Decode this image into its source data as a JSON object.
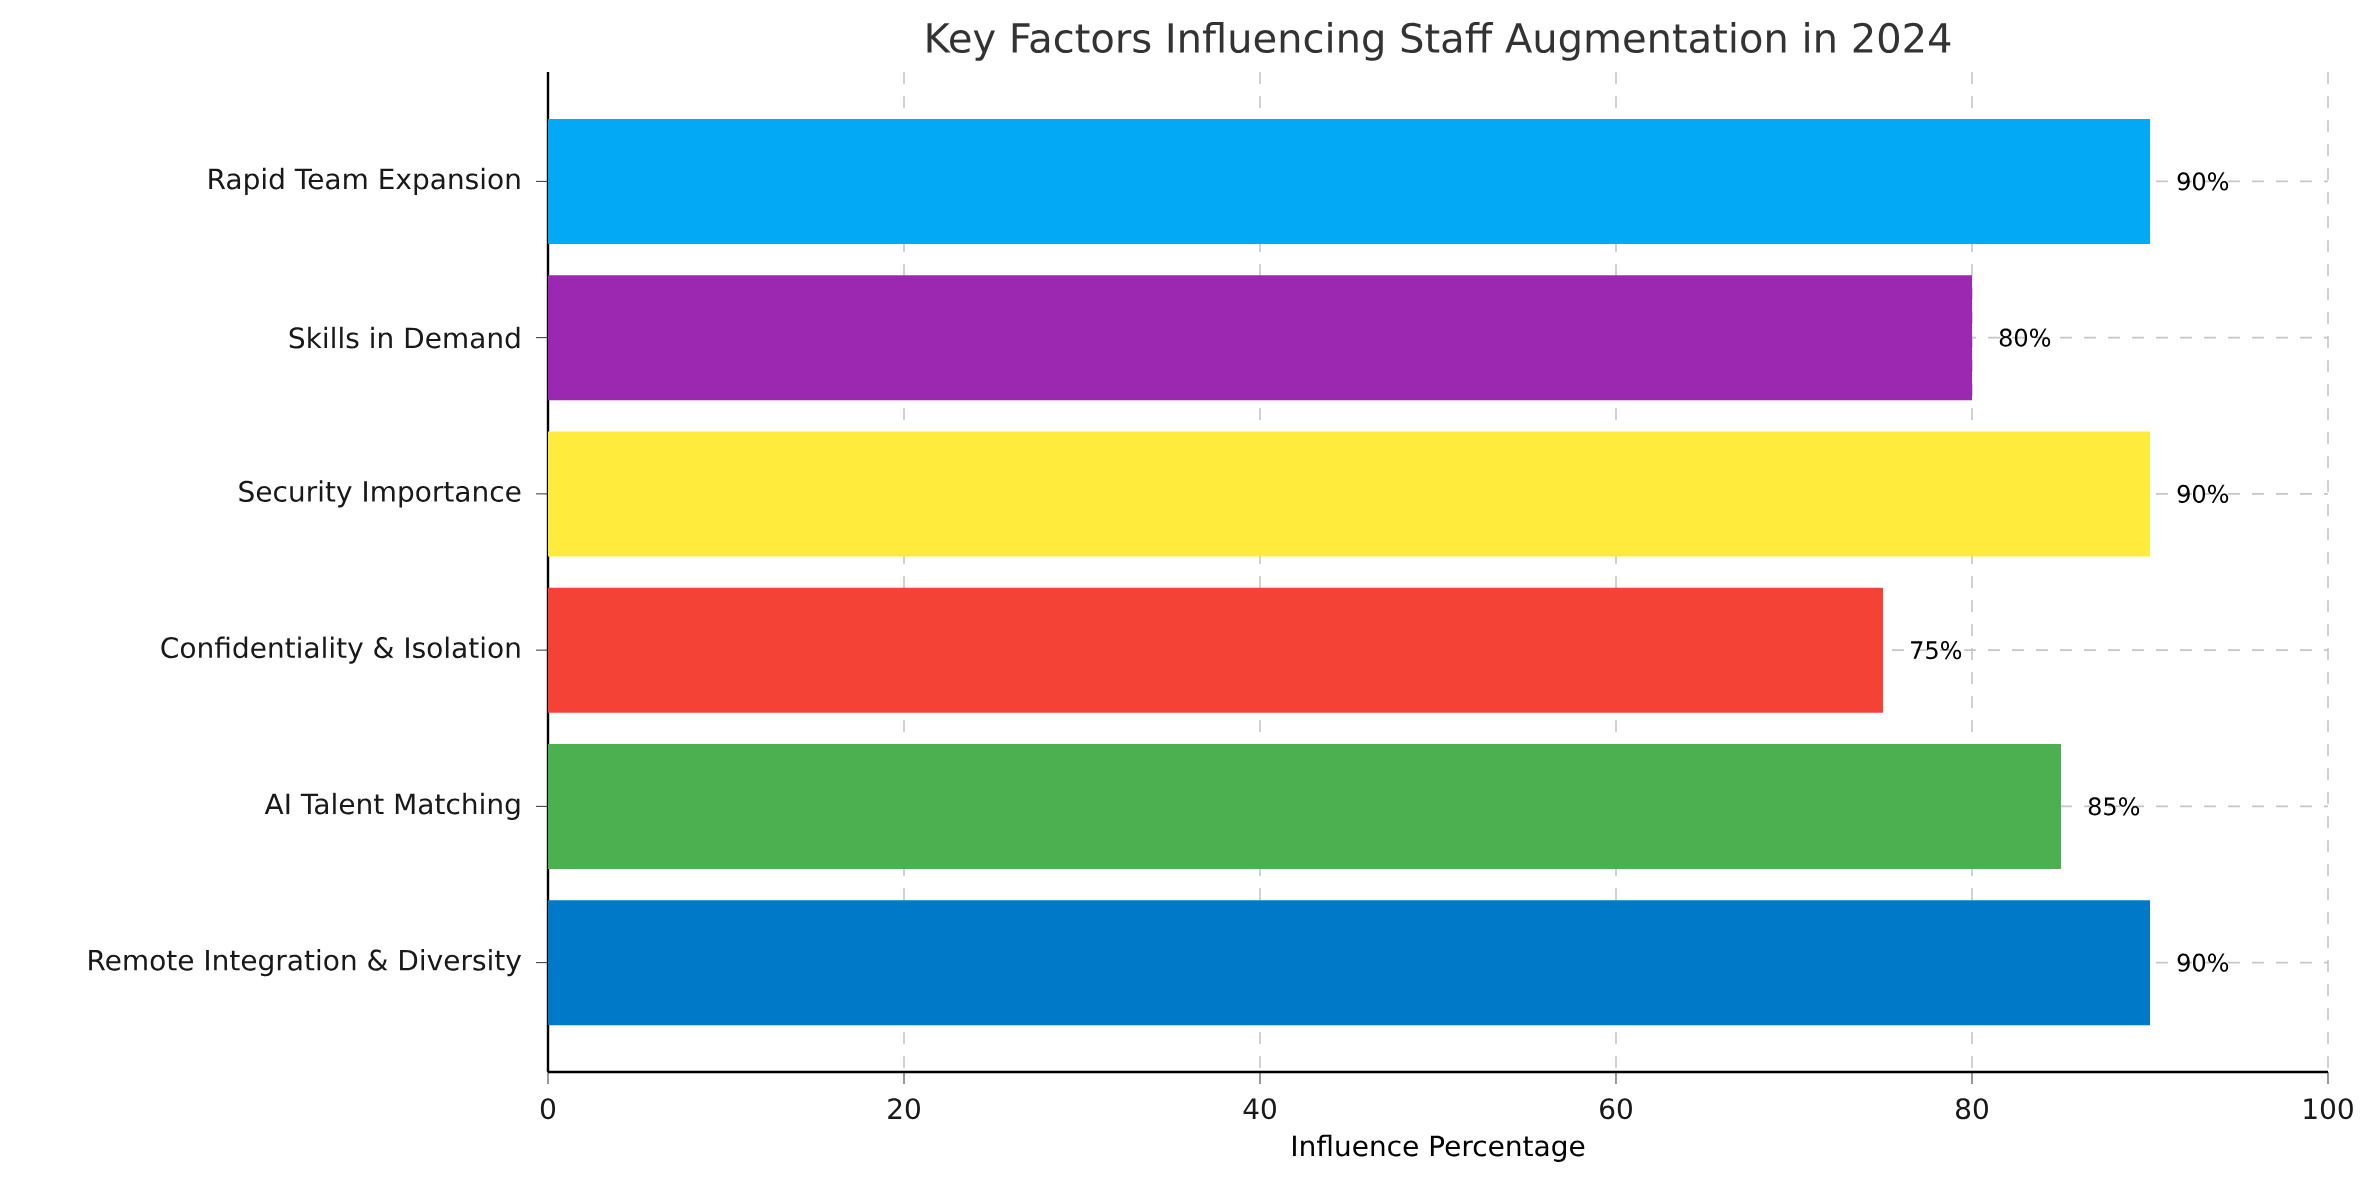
{
  "chart_data": {
    "type": "bar",
    "orientation": "horizontal",
    "title": "Key Factors Influencing Staff Augmentation in 2024",
    "xlabel": "Influence Percentage",
    "categories": [
      "Rapid Team Expansion",
      "Skills in Demand",
      "Security Importance",
      "Confidentiality & Isolation",
      "AI Talent Matching",
      "Remote Integration & Diversity"
    ],
    "values": [
      90,
      80,
      90,
      75,
      85,
      90
    ],
    "colors": [
      "#03a9f4",
      "#9c27b0",
      "#ffeb3b",
      "#f44336",
      "#4caf50",
      "#0179c9"
    ],
    "value_labels": [
      "90%",
      "80%",
      "90%",
      "75%",
      "85%",
      "90%"
    ],
    "xlim": [
      0,
      100
    ],
    "xticks": [
      0,
      20,
      40,
      60,
      80,
      100
    ],
    "grid": true
  }
}
